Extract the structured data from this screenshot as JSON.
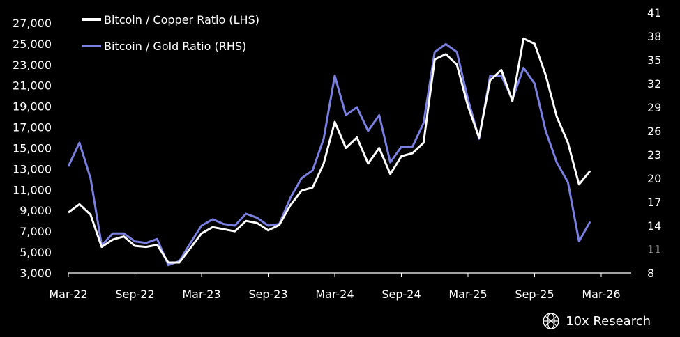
{
  "brand": {
    "name": "10x Research",
    "icon": "globe-logo-icon"
  },
  "colors": {
    "background": "#000000",
    "copper": "#ffffff",
    "gold": "#7b7fe0",
    "axis": "#ffffff"
  },
  "chart_data": {
    "type": "line",
    "title": "",
    "legend_position": "top-left",
    "grid": false,
    "x_ticks": [
      "Mar-22",
      "Sep-22",
      "Mar-23",
      "Sep-23",
      "Mar-24",
      "Sep-24",
      "Mar-25",
      "Sep-25",
      "Mar-26"
    ],
    "x_range": [
      "2022-03",
      "2026-03"
    ],
    "y_left": {
      "ticks": [
        "3,000",
        "5,000",
        "7,000",
        "9,000",
        "11,000",
        "13,000",
        "15,000",
        "17,000",
        "19,000",
        "21,000",
        "23,000",
        "25,000",
        "27,000"
      ],
      "range": [
        3000,
        28000
      ]
    },
    "y_right": {
      "ticks": [
        "8",
        "11",
        "14",
        "17",
        "20",
        "23",
        "26",
        "29",
        "32",
        "35",
        "38",
        "41"
      ],
      "range": [
        8,
        41
      ]
    },
    "series": [
      {
        "name": "Bitcoin / Copper Ratio (LHS)",
        "axis": "left",
        "x": [
          "2022-03",
          "2022-04",
          "2022-05",
          "2022-06",
          "2022-07",
          "2022-08",
          "2022-09",
          "2022-10",
          "2022-11",
          "2022-12",
          "2023-01",
          "2023-02",
          "2023-03",
          "2023-04",
          "2023-05",
          "2023-06",
          "2023-07",
          "2023-08",
          "2023-09",
          "2023-10",
          "2023-11",
          "2023-12",
          "2024-01",
          "2024-02",
          "2024-03",
          "2024-04",
          "2024-05",
          "2024-06",
          "2024-07",
          "2024-08",
          "2024-09",
          "2024-10",
          "2024-11",
          "2024-12",
          "2025-01",
          "2025-02",
          "2025-03",
          "2025-04",
          "2025-05",
          "2025-06",
          "2025-07",
          "2025-08",
          "2025-09",
          "2025-10",
          "2025-11",
          "2025-12",
          "2026-01",
          "2026-02"
        ],
        "y": [
          8800,
          9600,
          8600,
          5500,
          6200,
          6500,
          5600,
          5500,
          5700,
          4000,
          4000,
          5400,
          6800,
          7400,
          7200,
          7000,
          8000,
          7800,
          7100,
          7600,
          9500,
          10900,
          11200,
          13500,
          17500,
          15000,
          16000,
          13500,
          15000,
          12500,
          14200,
          14500,
          15500,
          23500,
          24000,
          23000,
          19000,
          16000,
          21500,
          22500,
          19500,
          25500,
          25000,
          22000,
          18000,
          15500,
          11500,
          12800
        ]
      },
      {
        "name": "Bitcoin / Gold Ratio (RHS)",
        "axis": "right",
        "x": [
          "2022-03",
          "2022-04",
          "2022-05",
          "2022-06",
          "2022-07",
          "2022-08",
          "2022-09",
          "2022-10",
          "2022-11",
          "2022-12",
          "2023-01",
          "2023-02",
          "2023-03",
          "2023-04",
          "2023-05",
          "2023-06",
          "2023-07",
          "2023-08",
          "2023-09",
          "2023-10",
          "2023-11",
          "2023-12",
          "2024-01",
          "2024-02",
          "2024-03",
          "2024-04",
          "2024-05",
          "2024-06",
          "2024-07",
          "2024-08",
          "2024-09",
          "2024-10",
          "2024-11",
          "2024-12",
          "2025-01",
          "2025-02",
          "2025-03",
          "2025-04",
          "2025-05",
          "2025-06",
          "2025-07",
          "2025-08",
          "2025-09",
          "2025-10",
          "2025-11",
          "2025-12",
          "2026-01",
          "2026-02"
        ],
        "y": [
          21.5,
          24.5,
          20,
          11.5,
          13,
          13,
          12,
          11.8,
          12.3,
          9,
          9.5,
          11.8,
          14,
          14.8,
          14.2,
          14,
          15.5,
          15,
          14,
          14.2,
          17.5,
          20,
          21,
          25,
          33,
          28,
          29,
          26,
          28,
          22,
          24,
          24,
          27,
          36,
          37,
          36,
          30,
          25,
          33,
          33,
          30,
          34,
          32,
          26,
          22,
          19.5,
          12,
          14.5
        ]
      }
    ]
  }
}
